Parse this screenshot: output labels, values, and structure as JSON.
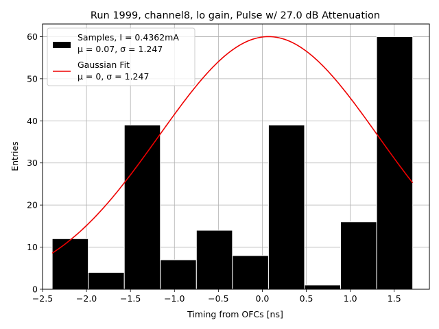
{
  "chart_data": {
    "type": "bar",
    "title": "Run 1999, channel8, lo gain, Pulse w/ 27.0 dB Attenuation",
    "xlabel": "Timing from OFCs [ns]",
    "ylabel": "Entries",
    "xlim": [
      -2.5,
      1.9
    ],
    "ylim": [
      0,
      63
    ],
    "grid": true,
    "xticks": [
      -2.5,
      -2.0,
      -1.5,
      -1.0,
      -0.5,
      0.0,
      0.5,
      1.0,
      1.5
    ],
    "xtick_labels": [
      "−2.5",
      "−2.0",
      "−1.5",
      "−1.0",
      "−0.5",
      "0.0",
      "0.5",
      "1.0",
      "1.5"
    ],
    "yticks": [
      0,
      10,
      20,
      30,
      40,
      50,
      60
    ],
    "ytick_labels": [
      "0",
      "10",
      "20",
      "30",
      "40",
      "50",
      "60"
    ],
    "histogram": {
      "name": "Samples, I = 0.4362mA",
      "color": "#000000",
      "bin_edges": [
        -2.39,
        -1.98,
        -1.57,
        -1.16,
        -0.75,
        -0.34,
        0.07,
        0.48,
        0.89,
        1.3,
        1.71
      ],
      "counts": [
        12,
        4,
        39,
        7,
        14,
        8,
        39,
        1,
        16,
        60
      ]
    },
    "fit": {
      "name": "Gaussian Fit",
      "color": "#ee0000",
      "amplitude": 60,
      "mu": 0.07,
      "sigma": 1.247,
      "x_range": [
        -2.39,
        1.71
      ]
    },
    "legend": {
      "position": "top-left",
      "entries": [
        {
          "label": "Samples, I = 0.4362mA",
          "sublabel": "μ = 0.07, σ = 1.247",
          "marker": "patch",
          "color": "#000000"
        },
        {
          "label": "Gaussian Fit",
          "sublabel": "μ = 0, σ = 1.247",
          "marker": "line",
          "color": "#ee0000"
        }
      ]
    }
  }
}
